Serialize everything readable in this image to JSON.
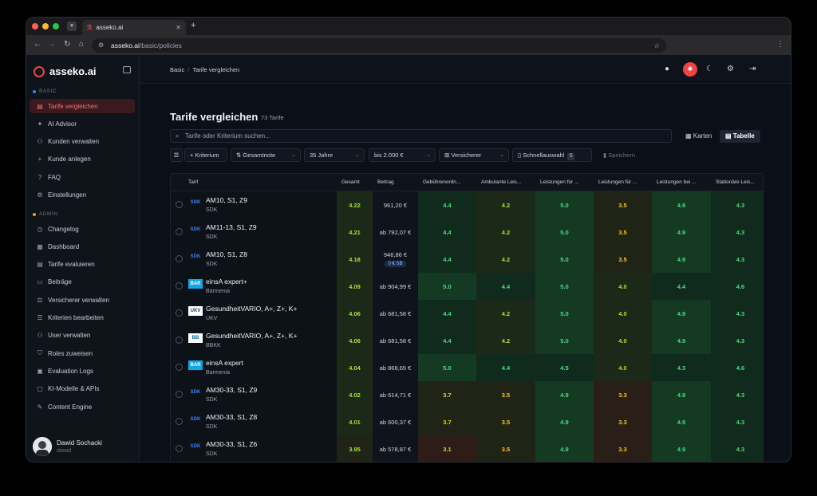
{
  "browser": {
    "tab_title": "asseko.ai",
    "url_host": "asseko.ai",
    "url_path": "/basic/policies"
  },
  "sidebar": {
    "brand": "asseko.ai",
    "section_basic": "BASIC",
    "section_admin": "ADMIN",
    "basic_items": [
      {
        "label": "Tarife vergleichen",
        "icon": "document-icon",
        "active": true
      },
      {
        "label": "AI Advisor",
        "icon": "sparkle-icon"
      },
      {
        "label": "Kunden verwalten",
        "icon": "users-icon"
      },
      {
        "label": "Kunde anlegen",
        "icon": "plus-icon"
      },
      {
        "label": "FAQ",
        "icon": "help-icon"
      },
      {
        "label": "Einstellungen",
        "icon": "gear-icon"
      }
    ],
    "admin_items": [
      {
        "label": "Changelog",
        "icon": "history-icon"
      },
      {
        "label": "Dashboard",
        "icon": "dashboard-icon"
      },
      {
        "label": "Tarife evaluieren",
        "icon": "document-icon"
      },
      {
        "label": "Beiträge",
        "icon": "money-icon"
      },
      {
        "label": "Versicherer verwalten",
        "icon": "scale-icon"
      },
      {
        "label": "Kriterien bearbeiten",
        "icon": "list-icon"
      },
      {
        "label": "User verwalten",
        "icon": "users-icon"
      },
      {
        "label": "Roles zuweisen",
        "icon": "shield-icon"
      },
      {
        "label": "Evaluation Logs",
        "icon": "logs-icon"
      },
      {
        "label": "KI-Modelle & APIs",
        "icon": "chip-icon"
      },
      {
        "label": "Content Engine",
        "icon": "edit-icon"
      }
    ],
    "user": {
      "name": "Dawid Sochacki",
      "handle": "dawid"
    }
  },
  "header": {
    "breadcrumb_root": "Basic",
    "breadcrumb_sep": "/",
    "breadcrumb_current": "Tarife vergleichen"
  },
  "page": {
    "title": "Tarife vergleichen",
    "count": "73 Tarife",
    "search_placeholder": "Tarife oder Kriterium suchen...",
    "view_cards": "Karten",
    "view_table": "Tabelle",
    "filters": {
      "add_criterion": "+ Kriterium",
      "sort": "Gesamtnote",
      "age": "35 Jahre",
      "budget": "bis 2.000 €",
      "insurer": "Versicherer",
      "quick": "Schnellauswahl",
      "quick_count": "5",
      "save": "Speichern"
    }
  },
  "table": {
    "columns": [
      "Tarif",
      "Gesamt",
      "Beitrag",
      "Gebührenordn...",
      "Ambulante Leis...",
      "Leistungen für ...",
      "Leistungen für ...",
      "Leistungen bei ...",
      "Stationäre Leis..."
    ],
    "rows": [
      {
        "name": "AM10, S1, Z9",
        "insurer": "SDK",
        "logo": "SDK",
        "gesamt": "4.22",
        "beitrag": "961,20 €",
        "sb": "",
        "scores": [
          "4.4",
          "4.2",
          "5.0",
          "3.5",
          "4.9",
          "4.3"
        ]
      },
      {
        "name": "AM11-13, S1, Z9",
        "insurer": "SDK",
        "logo": "SDK",
        "gesamt": "4.21",
        "beitrag": "ab 792,07 €",
        "sb": "",
        "scores": [
          "4.4",
          "4.2",
          "5.0",
          "3.5",
          "4.9",
          "4.3"
        ]
      },
      {
        "name": "AM10, S1, Z8",
        "insurer": "SDK",
        "logo": "SDK",
        "gesamt": "4.18",
        "beitrag": "946,86 €",
        "sb": "0 € SB",
        "scores": [
          "4.4",
          "4.2",
          "5.0",
          "3.5",
          "4.9",
          "4.3"
        ]
      },
      {
        "name": "einsA expert+",
        "insurer": "Barmenia",
        "logo": "BAR",
        "gesamt": "4.09",
        "beitrag": "ab 904,99 €",
        "sb": "",
        "scores": [
          "5.0",
          "4.4",
          "5.0",
          "4.0",
          "4.4",
          "4.6"
        ]
      },
      {
        "name": "GesundheitVARIO, A+, Z+, K+",
        "insurer": "UKV",
        "logo": "UKV",
        "gesamt": "4.06",
        "beitrag": "ab 681,58 €",
        "sb": "",
        "scores": [
          "4.4",
          "4.2",
          "5.0",
          "4.0",
          "4.9",
          "4.3"
        ]
      },
      {
        "name": "GesundheitVARIO, A+, Z+, K+",
        "insurer": "BBKK",
        "logo": "BB",
        "gesamt": "4.06",
        "beitrag": "ab 681,58 €",
        "sb": "",
        "scores": [
          "4.4",
          "4.2",
          "5.0",
          "4.0",
          "4.9",
          "4.3"
        ]
      },
      {
        "name": "einsA expert",
        "insurer": "Barmenia",
        "logo": "BAR",
        "gesamt": "4.04",
        "beitrag": "ab 868,65 €",
        "sb": "",
        "scores": [
          "5.0",
          "4.4",
          "4.5",
          "4.0",
          "4.3",
          "4.6"
        ]
      },
      {
        "name": "AM30-33, S1, Z9",
        "insurer": "SDK",
        "logo": "SDK",
        "gesamt": "4.02",
        "beitrag": "ab 614,71 €",
        "sb": "",
        "scores": [
          "3.7",
          "3.5",
          "4.9",
          "3.3",
          "4.9",
          "4.3"
        ]
      },
      {
        "name": "AM30-33, S1, Z8",
        "insurer": "SDK",
        "logo": "SDK",
        "gesamt": "4.01",
        "beitrag": "ab 600,37 €",
        "sb": "",
        "scores": [
          "3.7",
          "3.5",
          "4.9",
          "3.3",
          "4.9",
          "4.3"
        ]
      },
      {
        "name": "AM30-33, S1, Z6",
        "insurer": "SDK",
        "logo": "SDK",
        "gesamt": "3.95",
        "beitrag": "ab 578,87 €",
        "sb": "",
        "scores": [
          "3.1",
          "3.5",
          "4.9",
          "3.3",
          "4.9",
          "4.3"
        ]
      }
    ]
  },
  "colors": {
    "accent": "#ef4444",
    "score_high": "#4ade80",
    "score_mid": "#a3e635",
    "score_low": "#facc15"
  }
}
